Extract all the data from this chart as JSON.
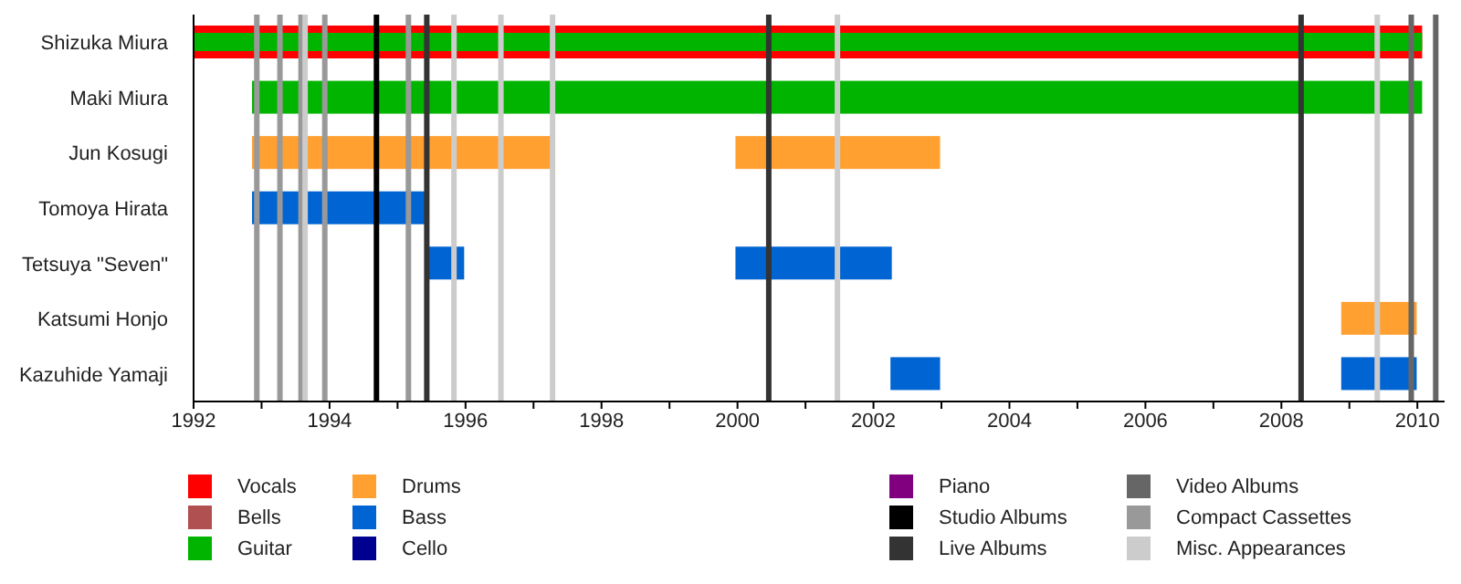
{
  "chart_data": {
    "type": "bar",
    "orientation": "horizontal",
    "legend": "bottom",
    "grid": false,
    "categories": [
      "Shizuka Miura",
      "Maki Miura",
      "Jun Kosugi",
      "Tomoya Hirata",
      "Tetsuya \"Seven\"",
      "Katsumi Honjo",
      "Kazuhide Yamaji"
    ],
    "xlim": [
      1992,
      2010.4
    ],
    "xticks": [
      1992,
      {
        "value": 1993,
        "label": null
      },
      1994,
      {
        "value": 1995,
        "label": null
      },
      1996,
      {
        "value": 1997,
        "label": null
      },
      1998,
      {
        "value": 1999,
        "label": null
      },
      2000,
      {
        "value": 2001,
        "label": null
      },
      2002,
      {
        "value": 2003,
        "label": null
      },
      2004,
      {
        "value": 2005,
        "label": null
      },
      2006,
      {
        "value": 2007,
        "label": null
      },
      2008,
      {
        "value": 2009,
        "label": null
      },
      2010
    ],
    "series": [
      {
        "name": "Vocals",
        "color": "#ff0000",
        "values": [
          18.07,
          null,
          null,
          null,
          null,
          null,
          null
        ],
        "base": [
          1992,
          null,
          null,
          null,
          null,
          null,
          null
        ]
      },
      {
        "name": "Bells",
        "color": "#b05050",
        "values": [
          null,
          null,
          null,
          null,
          null,
          null,
          null
        ]
      },
      {
        "name": "Guitar",
        "color": "#00b400",
        "values": [
          18.07,
          17.21,
          null,
          null,
          null,
          null,
          null
        ],
        "base": [
          1992,
          1992.86,
          null,
          null,
          null,
          null,
          null
        ]
      },
      {
        "name": "Drums",
        "color": "#ffa030",
        "values": [
          null,
          null,
          4.44,
          null,
          null,
          1.11,
          null
        ],
        "base": [
          null,
          null,
          1992.86,
          null,
          null,
          2008.88,
          null
        ]
      },
      {
        "name": "Bass",
        "color": "#0064d2",
        "values": [
          null,
          null,
          null,
          2.59,
          0.53,
          null,
          0.73
        ],
        "base": [
          null,
          null,
          null,
          1992.86,
          1995.45,
          null,
          2002.25
        ]
      },
      {
        "name": "Cello",
        "color": "#000090",
        "values": [
          null,
          null,
          null,
          null,
          null,
          null,
          null
        ]
      },
      {
        "name": "Piano",
        "color": "#800080",
        "values": [
          null,
          null,
          null,
          null,
          null,
          null,
          null
        ]
      },
      {
        "name": "Studio Albums",
        "color": "#000000",
        "values": [
          null,
          null,
          null,
          null,
          null,
          null,
          null
        ]
      },
      {
        "name": "Live Albums",
        "color": "#333333",
        "values": [
          null,
          null,
          null,
          null,
          null,
          null,
          null
        ]
      },
      {
        "name": "Video Albums",
        "color": "#666666",
        "values": [
          null,
          null,
          null,
          null,
          null,
          null,
          null
        ]
      },
      {
        "name": "Compact Cassettes",
        "color": "#999999",
        "values": [
          null,
          null,
          null,
          null,
          null,
          null,
          null
        ]
      },
      {
        "name": "Misc. Appearances",
        "color": "#cccccc",
        "values": [
          null,
          null,
          null,
          null,
          null,
          null,
          null
        ]
      },
      {
        "color": "#ffa030",
        "values": [
          null,
          null,
          3.01,
          null,
          null,
          null,
          null
        ],
        "base": [
          null,
          null,
          1999.97,
          null,
          null,
          null,
          null
        ]
      },
      {
        "color": "#0064d2",
        "values": [
          null,
          null,
          null,
          null,
          2.3,
          null,
          1.11
        ],
        "base": [
          null,
          null,
          null,
          null,
          1999.97,
          null,
          2008.88
        ]
      }
    ],
    "ref_lines": [
      {
        "axis": "x",
        "value": 1992.93,
        "color": "#999999"
      },
      {
        "axis": "x",
        "value": 1993.27,
        "color": "#999999"
      },
      {
        "axis": "x",
        "value": 1993.58,
        "color": "#999999"
      },
      {
        "axis": "x",
        "value": 1993.64,
        "color": "#cccccc"
      },
      {
        "axis": "x",
        "value": 1993.93,
        "color": "#999999"
      },
      {
        "axis": "x",
        "value": 1994.69,
        "color": "#000000"
      },
      {
        "axis": "x",
        "value": 1995.16,
        "color": "#999999"
      },
      {
        "axis": "x",
        "value": 1995.43,
        "color": "#333333"
      },
      {
        "axis": "x",
        "value": 1995.83,
        "color": "#cccccc"
      },
      {
        "axis": "x",
        "value": 1996.52,
        "color": "#cccccc"
      },
      {
        "axis": "x",
        "value": 1997.28,
        "color": "#cccccc"
      },
      {
        "axis": "x",
        "value": 2000.46,
        "color": "#333333"
      },
      {
        "axis": "x",
        "value": 2001.47,
        "color": "#cccccc"
      },
      {
        "axis": "x",
        "value": 2008.29,
        "color": "#333333"
      },
      {
        "axis": "x",
        "value": 2009.41,
        "color": "#cccccc"
      },
      {
        "axis": "x",
        "value": 2009.91,
        "color": "#666666"
      },
      {
        "axis": "x",
        "value": 2010.27,
        "color": "#666666"
      }
    ]
  }
}
